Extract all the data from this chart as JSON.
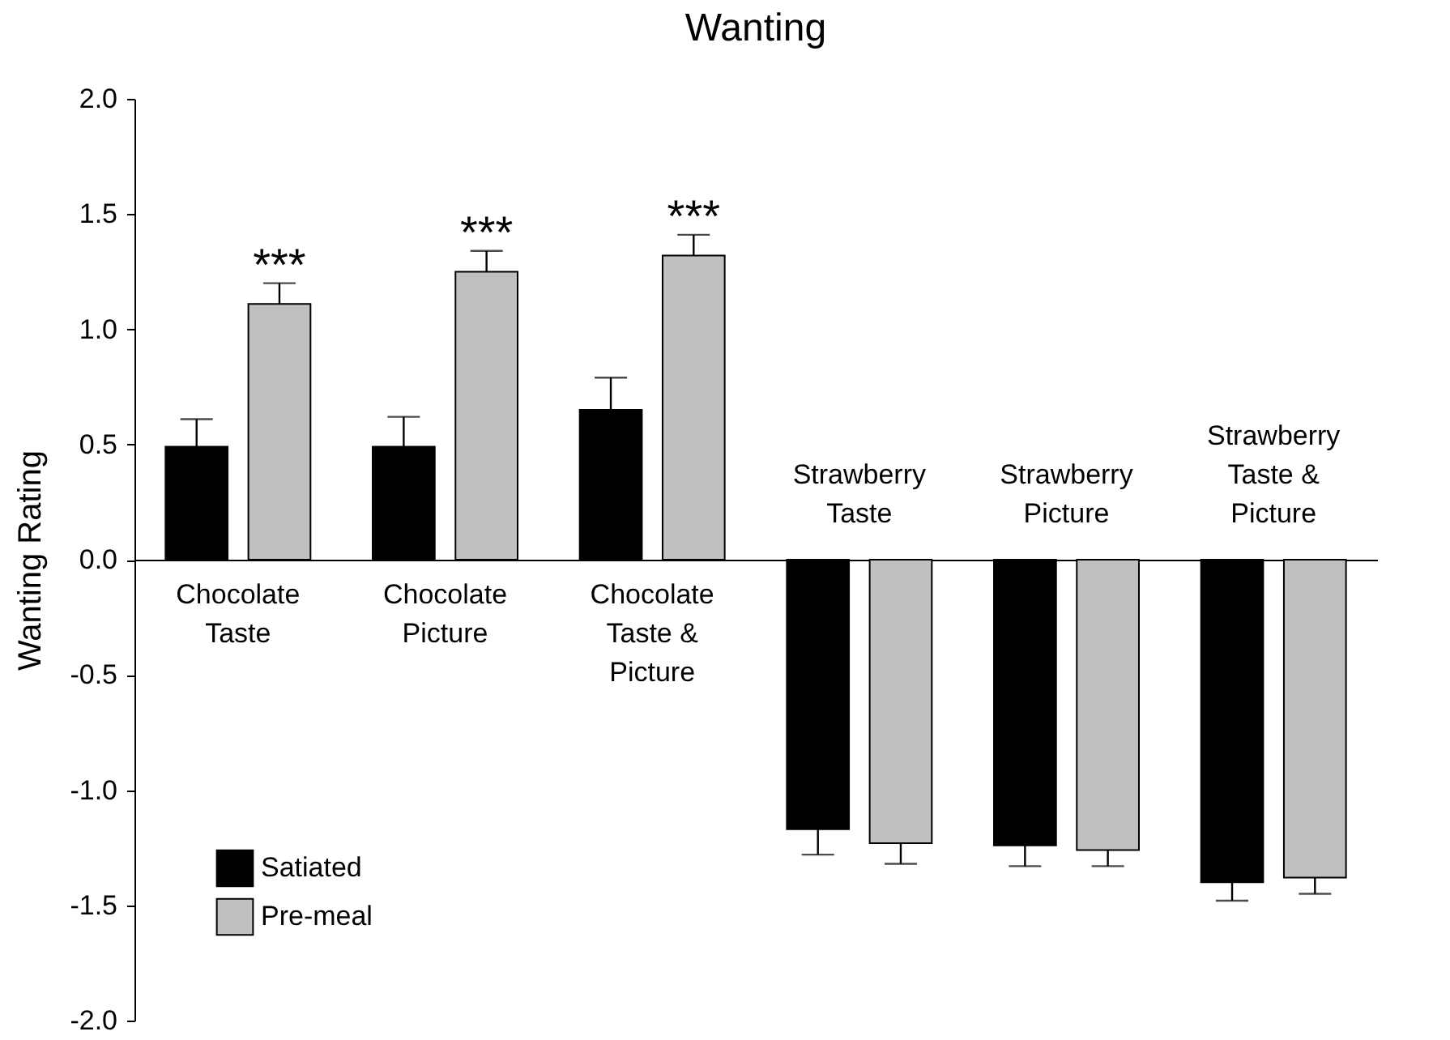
{
  "chart_data": {
    "type": "bar",
    "title": "Wanting",
    "ylabel": "Wanting Rating",
    "categories": [
      "Chocolate\nTaste",
      "Chocolate\nPicture",
      "Chocolate\nTaste &\nPicture",
      "Strawberry\nTaste",
      "Strawberry\nPicture",
      "Strawberry\nTaste &\nPicture"
    ],
    "series": [
      {
        "name": "Satiated",
        "color": "#000000",
        "values": [
          0.49,
          0.49,
          0.65,
          -1.17,
          -1.24,
          -1.4
        ],
        "errors": [
          [
            0.49,
            0.61
          ],
          [
            0.49,
            0.62
          ],
          [
            0.65,
            0.79
          ],
          [
            -1.28,
            -1.17
          ],
          [
            -1.33,
            -1.24
          ],
          [
            -1.48,
            -1.4
          ]
        ]
      },
      {
        "name": "Pre-meal",
        "color": "#c0c0c0",
        "values": [
          1.11,
          1.25,
          1.32,
          -1.23,
          -1.26,
          -1.38
        ],
        "errors": [
          [
            1.11,
            1.2
          ],
          [
            1.25,
            1.34
          ],
          [
            1.32,
            1.41
          ],
          [
            -1.32,
            -1.23
          ],
          [
            -1.33,
            -1.26
          ],
          [
            -1.45,
            -1.38
          ]
        ]
      }
    ],
    "annotations": [
      "***",
      "***",
      "***"
    ],
    "ylim": [
      -2,
      2
    ],
    "yticks": [
      {
        "value": -2,
        "label": "-2.0"
      },
      {
        "value": -1.5,
        "label": "-1.5"
      },
      {
        "value": -1,
        "label": "-1.0"
      },
      {
        "value": -0.5,
        "label": "-0.5"
      },
      {
        "value": 0,
        "label": "0.0"
      },
      {
        "value": 0.5,
        "label": "0.5"
      },
      {
        "value": 1,
        "label": "1.0"
      },
      {
        "value": 1.5,
        "label": "1.5"
      },
      {
        "value": 2,
        "label": "2.0"
      }
    ],
    "legend": "bottom left",
    "grid": false
  }
}
